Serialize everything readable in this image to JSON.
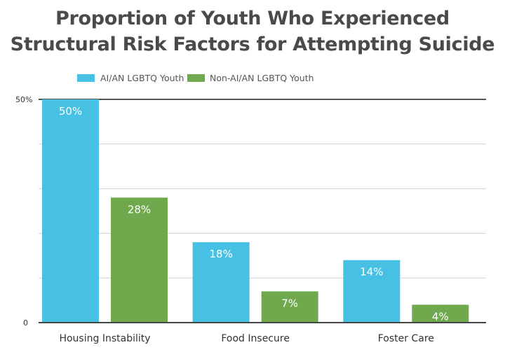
{
  "chart_data": {
    "type": "bar",
    "title": "Proportion of Youth Who Experienced Structural Risk Factors for Attempting Suicide",
    "categories": [
      "Housing Instability",
      "Food Insecure",
      "Foster Care"
    ],
    "series": [
      {
        "name": "AI/AN LGBTQ Youth",
        "color": "#47c1e3",
        "values": [
          50,
          18,
          14
        ],
        "labels": [
          "50%",
          "18%",
          "14%"
        ]
      },
      {
        "name": "Non-AI/AN LGBTQ Youth",
        "color": "#70a84d",
        "values": [
          28,
          7,
          4
        ],
        "labels": [
          "28%",
          "7%",
          "4%"
        ]
      }
    ],
    "ylim": [
      0,
      50
    ],
    "yticks": [
      {
        "value": 0,
        "label": "0"
      },
      {
        "value": 50,
        "label": "50%"
      }
    ],
    "grid_step": 10,
    "grid": true,
    "legend": "top-center",
    "xlabel": "",
    "ylabel": ""
  }
}
